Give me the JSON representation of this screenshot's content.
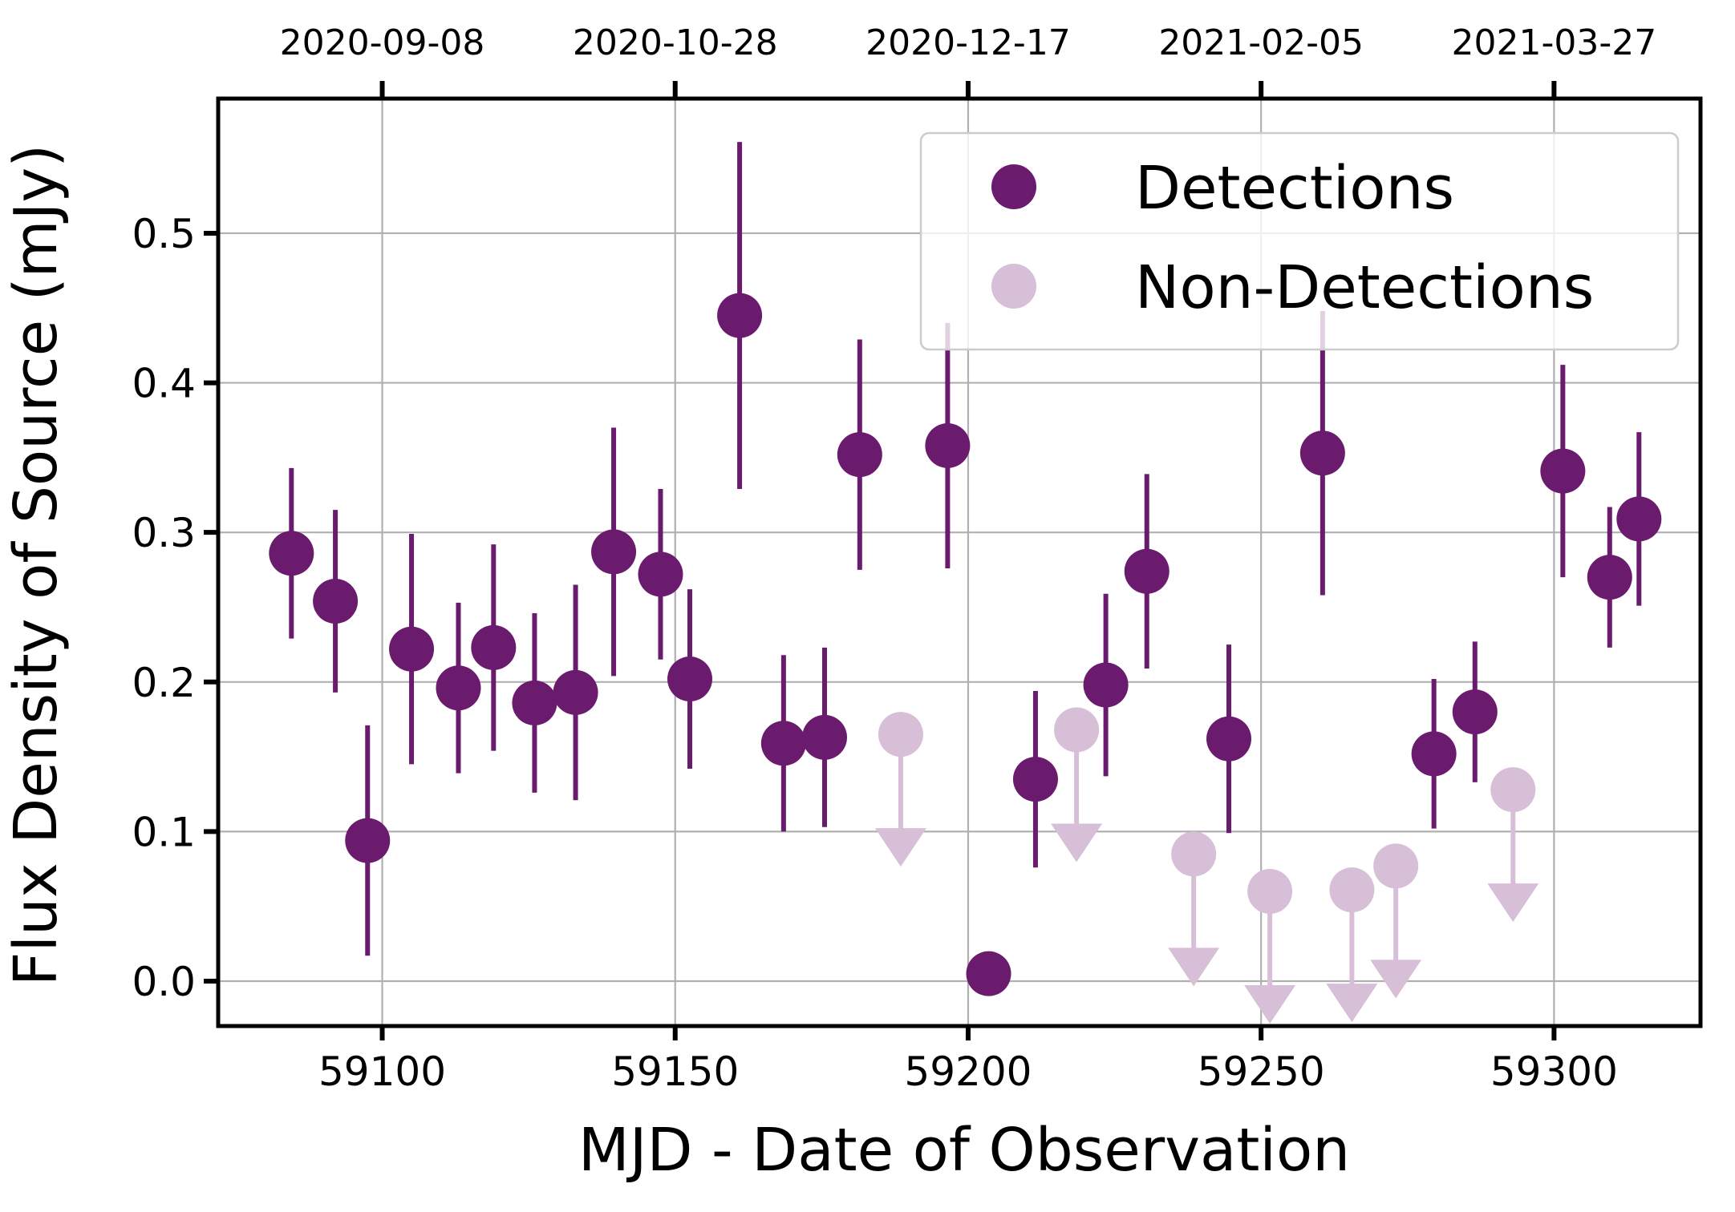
{
  "chart_data": {
    "type": "scatter",
    "title": "",
    "xlabel": "MJD - Date of Observation",
    "ylabel": "Flux Density of Source (mJy)",
    "xlim": [
      59072,
      59325
    ],
    "ylim": [
      -0.03,
      0.59
    ],
    "grid": true,
    "legend_position": "top-right",
    "x_ticks": [
      59100,
      59150,
      59200,
      59250,
      59300
    ],
    "x_tick_labels": [
      "59100",
      "59150",
      "59200",
      "59250",
      "59300"
    ],
    "y_ticks": [
      0.0,
      0.1,
      0.2,
      0.3,
      0.4,
      0.5
    ],
    "y_tick_labels": [
      "0.0",
      "0.1",
      "0.2",
      "0.3",
      "0.4",
      "0.5"
    ],
    "top_axis": {
      "ticks": [
        59100,
        59150,
        59200,
        59250,
        59300
      ],
      "labels": [
        "2020-09-08",
        "2020-10-28",
        "2020-12-17",
        "2021-02-05",
        "2021-03-27"
      ]
    },
    "series": [
      {
        "name": "Detections",
        "color": "#6a1b6e",
        "points": [
          {
            "x": 59084.5,
            "y": 0.286,
            "yerr": 0.057
          },
          {
            "x": 59092.0,
            "y": 0.254,
            "yerr": 0.061
          },
          {
            "x": 59097.5,
            "y": 0.094,
            "yerr": 0.077
          },
          {
            "x": 59105.0,
            "y": 0.222,
            "yerr": 0.077
          },
          {
            "x": 59113.0,
            "y": 0.196,
            "yerr": 0.057
          },
          {
            "x": 59119.0,
            "y": 0.223,
            "yerr": 0.069
          },
          {
            "x": 59126.0,
            "y": 0.186,
            "yerr": 0.06
          },
          {
            "x": 59133.0,
            "y": 0.193,
            "yerr": 0.072
          },
          {
            "x": 59139.5,
            "y": 0.287,
            "yerr": 0.083
          },
          {
            "x": 59147.5,
            "y": 0.272,
            "yerr": 0.057
          },
          {
            "x": 59152.5,
            "y": 0.202,
            "yerr": 0.06
          },
          {
            "x": 59161.0,
            "y": 0.445,
            "yerr": 0.116
          },
          {
            "x": 59168.5,
            "y": 0.159,
            "yerr": 0.059
          },
          {
            "x": 59175.5,
            "y": 0.163,
            "yerr": 0.06
          },
          {
            "x": 59181.5,
            "y": 0.352,
            "yerr": 0.077
          },
          {
            "x": 59196.5,
            "y": 0.358,
            "yerr": 0.082
          },
          {
            "x": 59203.5,
            "y": 0.005,
            "yerr": 0.0
          },
          {
            "x": 59211.5,
            "y": 0.135,
            "yerr": 0.059
          },
          {
            "x": 59223.5,
            "y": 0.198,
            "yerr": 0.061
          },
          {
            "x": 59230.5,
            "y": 0.274,
            "yerr": 0.065
          },
          {
            "x": 59244.5,
            "y": 0.162,
            "yerr": 0.063
          },
          {
            "x": 59260.5,
            "y": 0.353,
            "yerr": 0.095
          },
          {
            "x": 59279.5,
            "y": 0.152,
            "yerr": 0.05
          },
          {
            "x": 59286.5,
            "y": 0.18,
            "yerr": 0.047
          },
          {
            "x": 59301.5,
            "y": 0.341,
            "yerr": 0.071
          },
          {
            "x": 59309.5,
            "y": 0.27,
            "yerr": 0.047
          },
          {
            "x": 59314.5,
            "y": 0.309,
            "yerr": 0.058
          }
        ]
      },
      {
        "name": "Non-Detections",
        "color": "#d8bfd8",
        "upper_limit_arrows": true,
        "points": [
          {
            "x": 59188.5,
            "y": 0.165
          },
          {
            "x": 59218.5,
            "y": 0.168
          },
          {
            "x": 59238.5,
            "y": 0.085
          },
          {
            "x": 59251.5,
            "y": 0.06
          },
          {
            "x": 59265.5,
            "y": 0.061
          },
          {
            "x": 59273.0,
            "y": 0.077
          },
          {
            "x": 59293.0,
            "y": 0.128
          }
        ]
      }
    ]
  }
}
